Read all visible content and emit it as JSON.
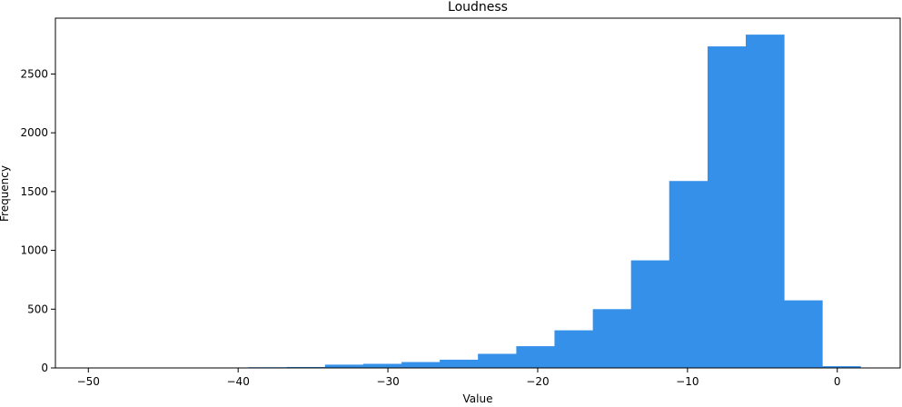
{
  "chart_data": {
    "type": "bar",
    "title": "Loudness",
    "xlabel": "Value",
    "ylabel": "Frequency",
    "xlim": [
      -52.2,
      4.2
    ],
    "ylim": [
      0,
      2975
    ],
    "x_ticks": [
      -50,
      -40,
      -30,
      -20,
      -10,
      0
    ],
    "x_tick_labels": [
      "−50",
      "−40",
      "−30",
      "−20",
      "−10",
      "0"
    ],
    "y_ticks": [
      0,
      500,
      1000,
      1500,
      2000,
      2500
    ],
    "y_tick_labels": [
      "0",
      "500",
      "1000",
      "1500",
      "2000",
      "2500"
    ],
    "bin_edges": [
      -49.53,
      -46.97,
      -44.42,
      -41.86,
      -39.31,
      -36.76,
      -34.2,
      -31.65,
      -29.09,
      -26.54,
      -23.99,
      -21.43,
      -18.88,
      -16.32,
      -13.77,
      -11.22,
      -8.66,
      -6.11,
      -3.55,
      -1.0,
      1.55
    ],
    "values": [
      1,
      0,
      0,
      4,
      6,
      8,
      28,
      35,
      50,
      70,
      120,
      185,
      320,
      500,
      915,
      1590,
      2735,
      2835,
      575,
      15
    ],
    "bar_color": "#3590e9",
    "grid": false,
    "legend": "none"
  }
}
